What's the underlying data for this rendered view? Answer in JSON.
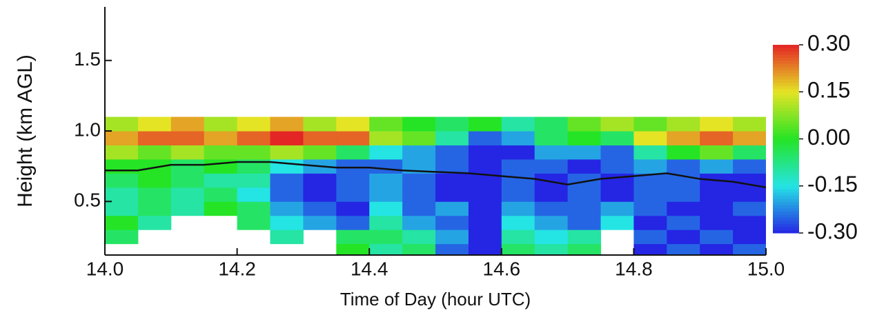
{
  "chart_data": {
    "type": "heatmap",
    "xlabel": "Time of Day (hour UTC)",
    "ylabel": "Height (km AGL)",
    "x_bins": [
      14.0,
      14.05,
      14.1,
      14.15,
      14.2,
      14.25,
      14.3,
      14.35,
      14.4,
      14.45,
      14.5,
      14.55,
      14.6,
      14.65,
      14.7,
      14.75,
      14.8,
      14.85,
      14.9,
      14.95,
      15.0
    ],
    "y_bins": [
      0.1,
      0.2,
      0.3,
      0.4,
      0.5,
      0.6,
      0.7,
      0.8,
      0.9,
      1.0,
      1.1
    ],
    "z": [
      [
        null,
        null,
        null,
        null,
        null,
        null,
        null,
        0,
        -0.1,
        -0.05,
        -0.25,
        -0.3,
        -0.05,
        -0.1,
        -0.05,
        null,
        -0.3,
        -0.25,
        -0.3,
        -0.25
      ],
      [
        -0.05,
        null,
        null,
        null,
        null,
        -0.1,
        null,
        -0.05,
        -0.05,
        -0.1,
        -0.2,
        -0.3,
        -0.1,
        -0.15,
        -0.1,
        null,
        -0.25,
        -0.3,
        -0.25,
        -0.3
      ],
      [
        0,
        -0.1,
        null,
        null,
        -0.05,
        -0.15,
        -0.2,
        -0.25,
        -0.1,
        -0.2,
        -0.25,
        -0.3,
        -0.15,
        -0.2,
        -0.25,
        -0.15,
        -0.3,
        -0.25,
        -0.3,
        -0.3
      ],
      [
        -0.1,
        -0.05,
        -0.1,
        0,
        -0.05,
        -0.2,
        -0.25,
        -0.3,
        -0.15,
        -0.25,
        -0.2,
        -0.3,
        -0.2,
        -0.25,
        -0.25,
        -0.2,
        -0.25,
        -0.3,
        -0.3,
        -0.25
      ],
      [
        -0.1,
        -0.05,
        -0.1,
        -0.05,
        -0.15,
        -0.25,
        -0.3,
        -0.25,
        -0.2,
        -0.25,
        -0.3,
        -0.3,
        -0.25,
        -0.3,
        -0.25,
        -0.3,
        -0.25,
        -0.25,
        -0.3,
        -0.3
      ],
      [
        -0.05,
        0,
        -0.05,
        -0.1,
        -0.1,
        -0.25,
        -0.3,
        -0.25,
        -0.2,
        -0.25,
        -0.3,
        -0.3,
        -0.25,
        -0.3,
        -0.25,
        -0.3,
        -0.25,
        -0.25,
        -0.3,
        -0.3
      ],
      [
        0,
        0,
        -0.05,
        0,
        -0.05,
        -0.15,
        -0.2,
        -0.25,
        -0.25,
        -0.2,
        -0.25,
        -0.3,
        -0.25,
        -0.25,
        -0.3,
        -0.25,
        -0.2,
        -0.25,
        -0.2,
        -0.25
      ],
      [
        0.1,
        0.05,
        0.1,
        0.05,
        0.05,
        0.1,
        0.05,
        -0.05,
        -0.15,
        -0.2,
        -0.25,
        -0.3,
        -0.3,
        -0.2,
        -0.2,
        -0.25,
        -0.1,
        0,
        0.05,
        -0.05
      ],
      [
        0.2,
        0.25,
        0.25,
        0.2,
        0.25,
        0.3,
        0.25,
        0.25,
        0.1,
        0.05,
        -0.1,
        -0.25,
        -0.2,
        -0.05,
        0,
        -0.05,
        0.15,
        0.2,
        0.25,
        0.2
      ],
      [
        0.1,
        0.15,
        0.2,
        0.1,
        0.15,
        0.2,
        0.1,
        0.15,
        0.05,
        0,
        -0.05,
        0,
        -0.1,
        -0.05,
        0.05,
        0.1,
        0.05,
        0.1,
        0.15,
        0.1
      ]
    ],
    "line": {
      "color": "#111111",
      "x": [
        14.0,
        14.05,
        14.1,
        14.15,
        14.2,
        14.25,
        14.3,
        14.35,
        14.4,
        14.45,
        14.5,
        14.55,
        14.6,
        14.65,
        14.7,
        14.75,
        14.8,
        14.85,
        14.9,
        14.95,
        15.0
      ],
      "y": [
        0.72,
        0.72,
        0.76,
        0.76,
        0.78,
        0.78,
        0.76,
        0.74,
        0.74,
        0.72,
        0.71,
        0.7,
        0.68,
        0.66,
        0.62,
        0.66,
        0.68,
        0.7,
        0.66,
        0.64,
        0.6
      ]
    },
    "xlim": [
      14.0,
      15.0
    ],
    "xticks": [
      {
        "value": 14,
        "label": "14.0"
      },
      14.2,
      14.4,
      14.6,
      14.8,
      {
        "value": 15,
        "label": "15.0"
      }
    ],
    "ylim": [
      0.12,
      1.88
    ],
    "yticks": [
      0.5,
      {
        "value": 1,
        "label": "1.0"
      },
      1.5
    ],
    "clim": [
      -0.3,
      0.3
    ],
    "cticks": [
      {
        "value": -0.3,
        "label": "-0.30"
      },
      {
        "value": -0.15,
        "label": "-0.15"
      },
      {
        "value": 0,
        "label": "0.00"
      },
      {
        "value": 0.15,
        "label": "0.15"
      },
      {
        "value": 0.3,
        "label": "0.30"
      }
    ]
  }
}
